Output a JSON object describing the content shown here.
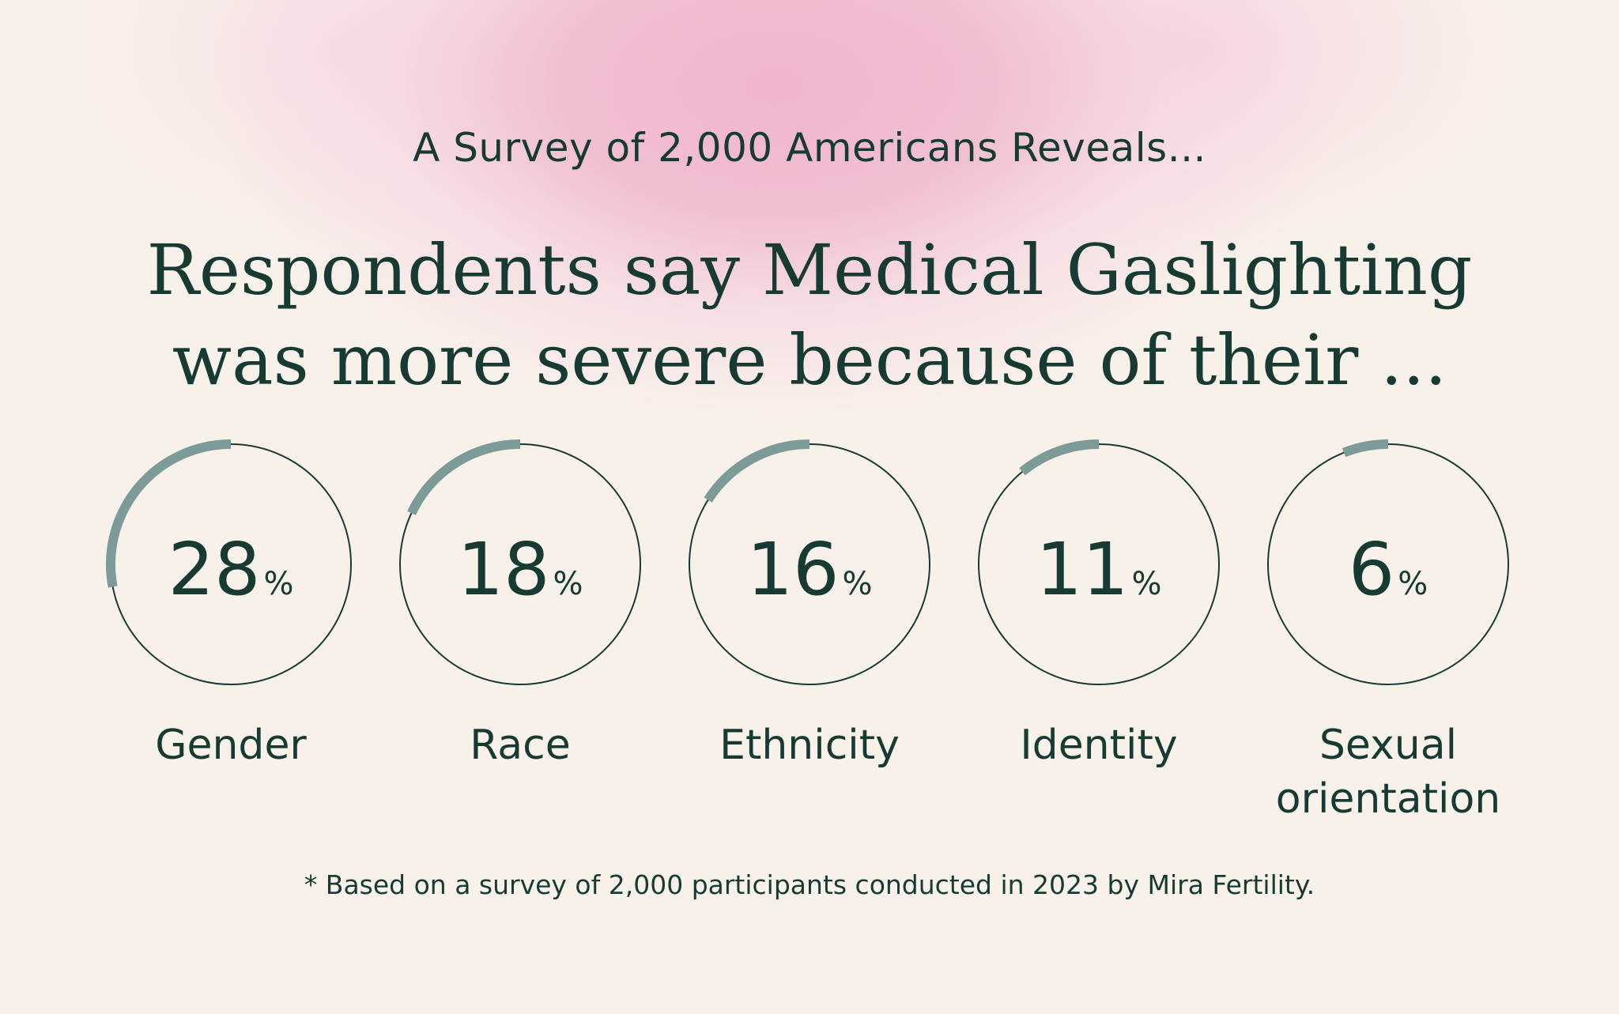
{
  "header": {
    "subtitle": "A Survey of 2,000 Americans Reveals...",
    "title_line1": "Respondents say Medical Gaslighting",
    "title_line2": "was more severe because of their ..."
  },
  "chart_data": {
    "type": "radial-progress",
    "unit": "%",
    "max": 100,
    "items": [
      {
        "label_lines": [
          "Gender"
        ],
        "value": 28
      },
      {
        "label_lines": [
          "Race"
        ],
        "value": 18
      },
      {
        "label_lines": [
          "Ethnicity"
        ],
        "value": 16
      },
      {
        "label_lines": [
          "Identity"
        ],
        "value": 11
      },
      {
        "label_lines": [
          "Sexual",
          "orientation"
        ],
        "value": 6
      }
    ]
  },
  "colors": {
    "ring_outline": "#173a33",
    "progress_arc": "#7c9b98",
    "text": "#173a33",
    "background": "#f8f1ea",
    "glow": "#f0b2ce"
  },
  "footnote": "* Based on a survey of 2,000 participants conducted in 2023 by Mira Fertility."
}
